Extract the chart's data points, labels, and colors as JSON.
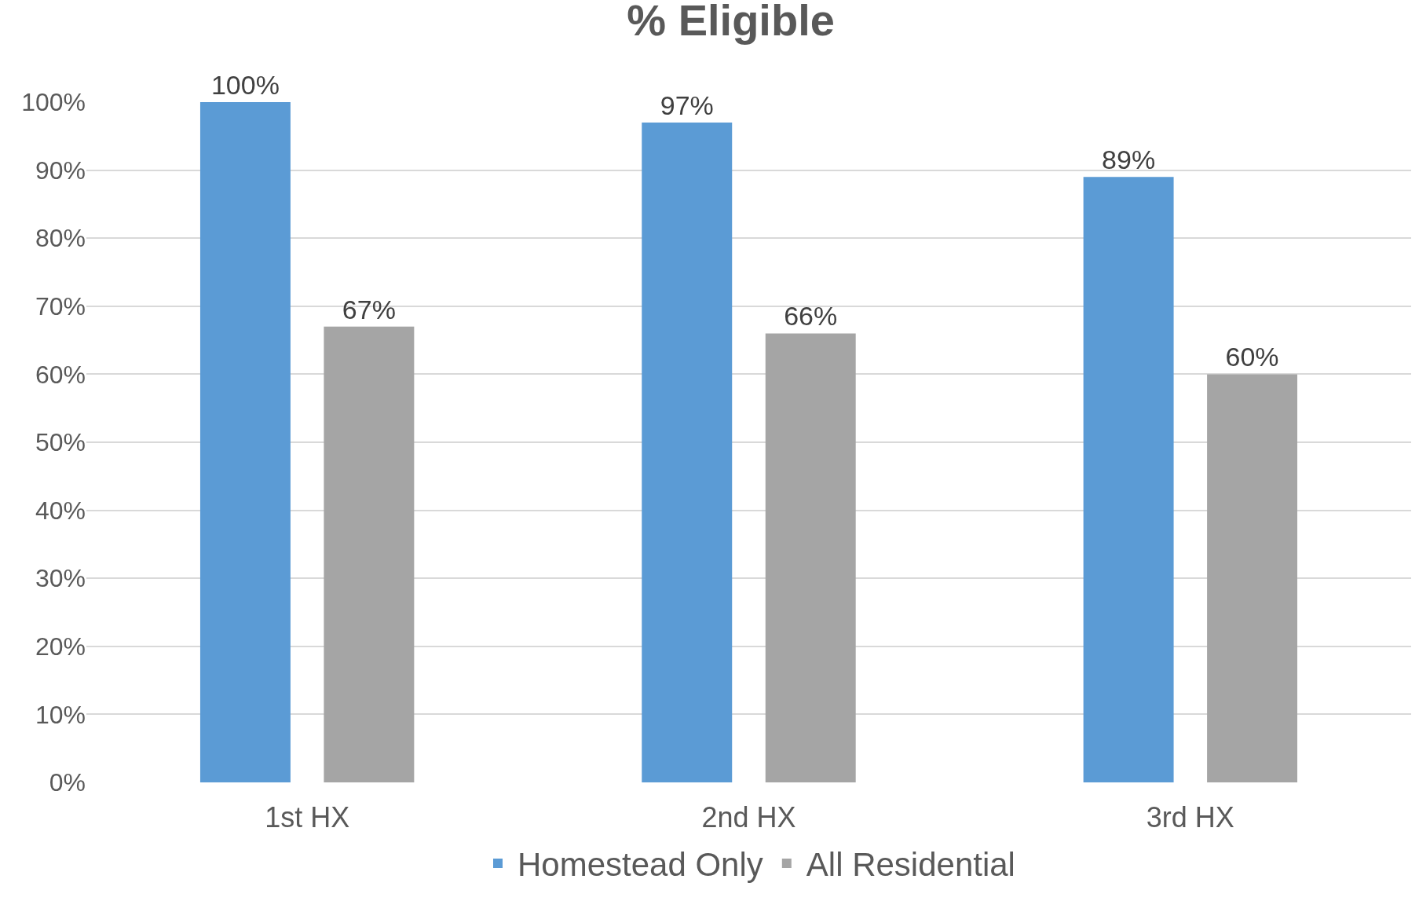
{
  "chart_data": {
    "type": "bar",
    "title": "% Eligible",
    "categories": [
      "1st HX",
      "2nd HX",
      "3rd HX"
    ],
    "series": [
      {
        "name": "Homestead Only",
        "color": "#5b9bd5",
        "values": [
          100,
          97,
          89
        ]
      },
      {
        "name": "All Residential",
        "color": "#a5a5a5",
        "values": [
          67,
          66,
          60
        ]
      }
    ],
    "ylim": [
      0,
      100
    ],
    "yticks": [
      {
        "value": 0,
        "label": "0%"
      },
      {
        "value": 10,
        "label": "10%"
      },
      {
        "value": 20,
        "label": "20%"
      },
      {
        "value": 30,
        "label": "30%"
      },
      {
        "value": 40,
        "label": "40%"
      },
      {
        "value": 50,
        "label": "50%"
      },
      {
        "value": 60,
        "label": "60%"
      },
      {
        "value": 70,
        "label": "70%"
      },
      {
        "value": 80,
        "label": "80%"
      },
      {
        "value": 90,
        "label": "90%"
      },
      {
        "value": 100,
        "label": "100%"
      }
    ],
    "value_labels": [
      [
        "100%",
        "97%",
        "89%"
      ],
      [
        "67%",
        "66%",
        "60%"
      ]
    ],
    "grid": "y",
    "legend": "bottom"
  }
}
